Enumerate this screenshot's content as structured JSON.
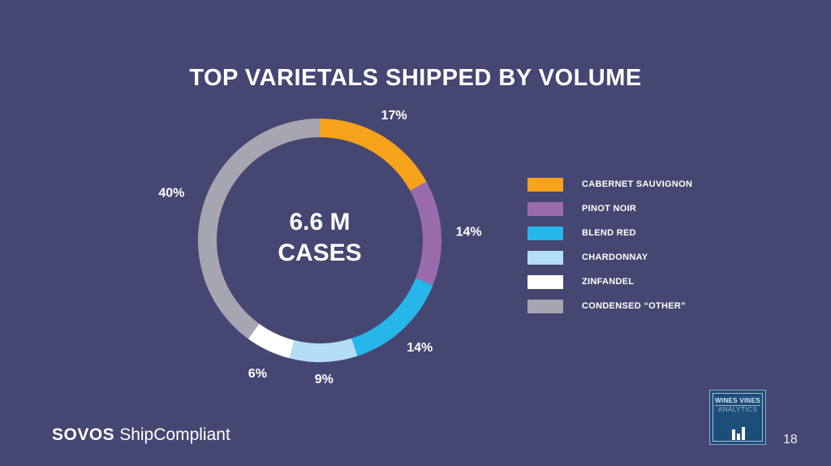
{
  "chart_data": {
    "type": "pie",
    "title": "TOP VARIETALS SHIPPED BY VOLUME",
    "center_label": [
      "6.6 M",
      "CASES"
    ],
    "categories": [
      "CABERNET SAUVIGNON",
      "PINOT NOIR",
      "BLEND RED",
      "CHARDONNAY",
      "ZINFANDEL",
      "CONDENSED “OTHER”"
    ],
    "values": [
      17,
      14,
      14,
      9,
      6,
      40
    ],
    "data_labels": [
      "17%",
      "14%",
      "14%",
      "9%",
      "6%",
      "40%"
    ],
    "colors": [
      "#f6a31b",
      "#9a6cae",
      "#26b6ea",
      "#b3def6",
      "#ffffff",
      "#a6a5b1"
    ],
    "legend_position": "right"
  },
  "footer": {
    "brand_bold": "SOVOS",
    "brand_rest": "ShipCompliant",
    "partner_line1": "WINES VINES",
    "partner_line2": "ANALYTICS",
    "page_number": "18"
  }
}
